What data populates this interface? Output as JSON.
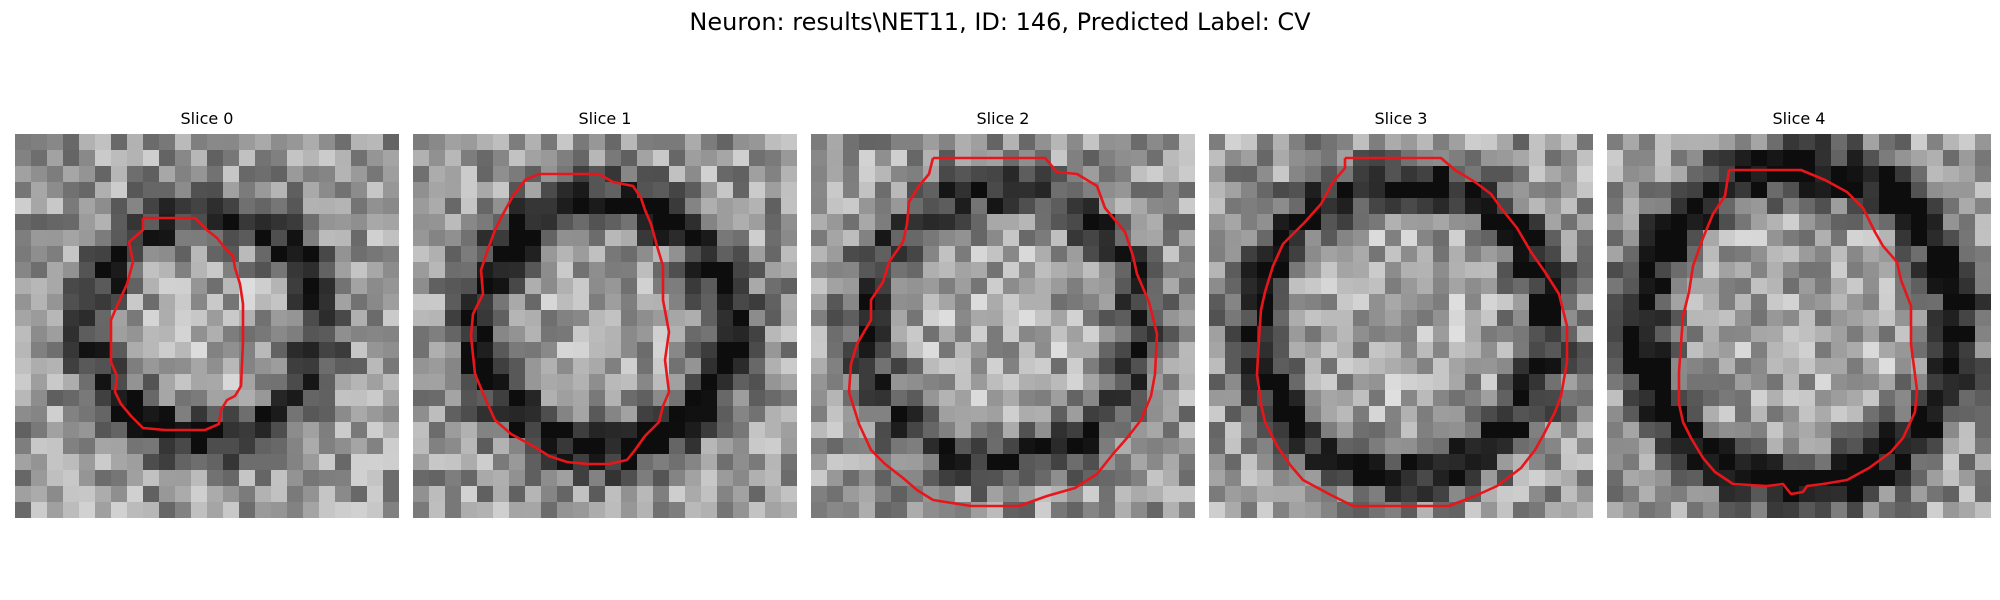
{
  "figure": {
    "title": "Neuron: results\\NET11, ID: 146, Predicted Label: CV"
  },
  "panels": [
    {
      "title": "Slice 0",
      "seed": 11,
      "dark_ring": 0.45
    },
    {
      "title": "Slice 1",
      "seed": 23,
      "dark_ring": 0.55
    },
    {
      "title": "Slice 2",
      "seed": 37,
      "dark_ring": 0.4
    },
    {
      "title": "Slice 3",
      "seed": 41,
      "dark_ring": 0.5
    },
    {
      "title": "Slice 4",
      "seed": 59,
      "dark_ring": 0.6
    }
  ],
  "colors": {
    "contour": "#e8161b",
    "background": "#ffffff"
  }
}
